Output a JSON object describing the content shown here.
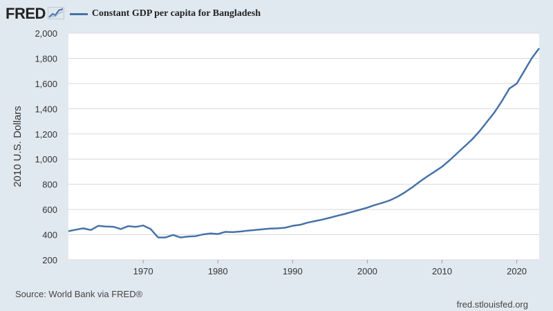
{
  "header": {
    "logo": "FRED",
    "logo_icon": "fred-chart-icon"
  },
  "footer": {
    "source": "Source: World Bank via FRED®",
    "site": "fred.stlouisfed.org"
  },
  "colors": {
    "series": "#4572a7",
    "plot_bg": "#ffffff",
    "page_bg": "#e1e9f0",
    "grid": "#d8d8d8"
  },
  "chart_data": {
    "type": "line",
    "title": "",
    "xlabel": "",
    "ylabel": "2010 U.S. Dollars",
    "xlim": [
      1960,
      2023
    ],
    "ylim": [
      200,
      2000
    ],
    "x_ticks": [
      "1970",
      "1980",
      "1990",
      "2000",
      "2010",
      "2020"
    ],
    "y_ticks": [
      "200",
      "400",
      "600",
      "800",
      "1,000",
      "1,200",
      "1,400",
      "1,600",
      "1,800",
      "2,000"
    ],
    "grid": "horizontal",
    "legend": "top-left",
    "series": [
      {
        "name": "Constant GDP per capita for Bangladesh",
        "x": [
          1960,
          1961,
          1962,
          1963,
          1964,
          1965,
          1966,
          1967,
          1968,
          1969,
          1970,
          1971,
          1972,
          1973,
          1974,
          1975,
          1976,
          1977,
          1978,
          1979,
          1980,
          1981,
          1982,
          1983,
          1984,
          1985,
          1986,
          1987,
          1988,
          1989,
          1990,
          1991,
          1992,
          1993,
          1994,
          1995,
          1996,
          1997,
          1998,
          1999,
          2000,
          2001,
          2002,
          2003,
          2004,
          2005,
          2006,
          2007,
          2008,
          2009,
          2010,
          2011,
          2012,
          2013,
          2014,
          2015,
          2016,
          2017,
          2018,
          2019,
          2020,
          2021,
          2022,
          2023
        ],
        "values": [
          428,
          440,
          450,
          437,
          470,
          465,
          463,
          445,
          468,
          462,
          473,
          445,
          378,
          378,
          398,
          378,
          385,
          388,
          402,
          410,
          405,
          422,
          420,
          425,
          432,
          437,
          443,
          448,
          450,
          455,
          470,
          478,
          495,
          508,
          520,
          535,
          550,
          565,
          582,
          598,
          615,
          635,
          652,
          672,
          700,
          735,
          775,
          820,
          862,
          900,
          940,
          990,
          1045,
          1100,
          1155,
          1220,
          1295,
          1370,
          1460,
          1560,
          1600,
          1700,
          1800,
          1880
        ]
      }
    ]
  }
}
